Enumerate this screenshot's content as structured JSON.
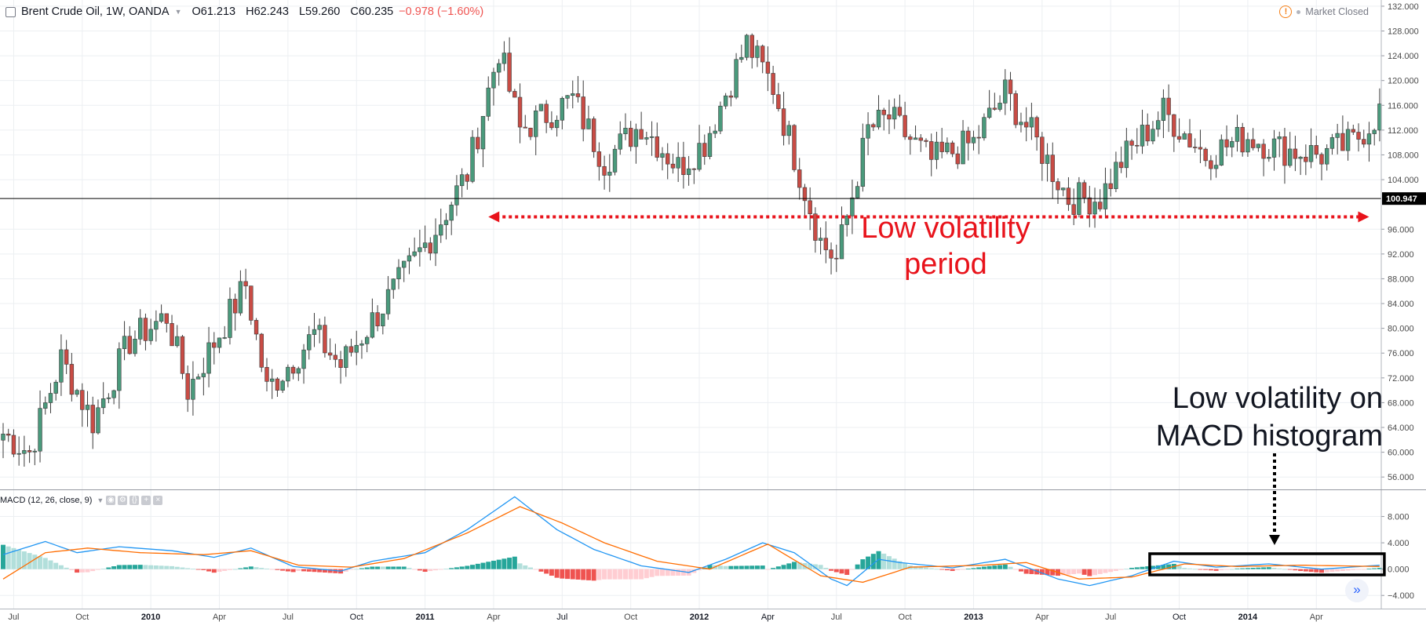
{
  "header": {
    "symbol": "Brent Crude Oil, 1W, OANDA",
    "open": "O61.213",
    "high": "H62.243",
    "low": "L59.260",
    "close": "C60.235",
    "change": "−0.978 (−1.60%)",
    "status": "Market Closed"
  },
  "indicator": {
    "label": "MACD (12, 26, close, 9)"
  },
  "annotations": {
    "low_vol_period_line1": "Low volatility",
    "low_vol_period_line2": "period",
    "macd_note_line1": "Low volatility on",
    "macd_note_line2": "MACD histogram"
  },
  "colors": {
    "up_candle": "#4a9a7c",
    "down_candle": "#c94c45",
    "macd_line": "#2196f3",
    "signal_line": "#ff6d00",
    "hist_pos_strong": "#26a69a",
    "hist_pos_weak": "#b2dfdb",
    "hist_neg_strong": "#ef5350",
    "hist_neg_weak": "#ffcdd2",
    "annotation_red": "#e8131b"
  },
  "chart_data": [
    {
      "type": "candlestick",
      "title": "Brent Crude Oil, 1W, OANDA",
      "interval": "1W",
      "ylim": [
        54,
        133
      ],
      "y_ticks": [
        56,
        60,
        64,
        68,
        72,
        76,
        80,
        84,
        88,
        92,
        96,
        104,
        108,
        112,
        116,
        120,
        124,
        128,
        132
      ],
      "y_tick_labels": [
        "56.000",
        "60.000",
        "64.000",
        "68.000",
        "72.000",
        "76.000",
        "80.000",
        "84.000",
        "88.000",
        "92.000",
        "96.000",
        "104.000",
        "108.000",
        "112.000",
        "116.000",
        "120.000",
        "124.000",
        "128.000",
        "132.000"
      ],
      "price_marker": 100.947,
      "price_marker_label": "100.947",
      "x_axis_labels": [
        "Jul",
        "Oct",
        "2010",
        "Apr",
        "Jul",
        "Oct",
        "2011",
        "Apr",
        "Jul",
        "Oct",
        "2012",
        "Apr",
        "Jul",
        "Oct",
        "2013",
        "Apr",
        "Jul",
        "Oct",
        "2014",
        "Apr"
      ],
      "x_axis_label_weeks": [
        2,
        15,
        28,
        41,
        54,
        67,
        80,
        93,
        106,
        119,
        132,
        145,
        158,
        171,
        184,
        197,
        210,
        223,
        236,
        249
      ],
      "weeks": 262,
      "key_points": [
        {
          "week": 0,
          "price": 63
        },
        {
          "week": 5,
          "price": 60
        },
        {
          "week": 11,
          "price": 75
        },
        {
          "week": 17,
          "price": 65
        },
        {
          "week": 24,
          "price": 78
        },
        {
          "week": 31,
          "price": 82
        },
        {
          "week": 35,
          "price": 70
        },
        {
          "week": 46,
          "price": 87
        },
        {
          "week": 50,
          "price": 70
        },
        {
          "week": 59,
          "price": 79
        },
        {
          "week": 64,
          "price": 74
        },
        {
          "week": 74,
          "price": 86
        },
        {
          "week": 82,
          "price": 96
        },
        {
          "week": 88,
          "price": 105
        },
        {
          "week": 94,
          "price": 125
        },
        {
          "week": 98,
          "price": 112
        },
        {
          "week": 108,
          "price": 117
        },
        {
          "week": 114,
          "price": 107
        },
        {
          "week": 121,
          "price": 113
        },
        {
          "week": 128,
          "price": 106
        },
        {
          "week": 133,
          "price": 110
        },
        {
          "week": 141,
          "price": 126
        },
        {
          "week": 146,
          "price": 119
        },
        {
          "week": 155,
          "price": 94
        },
        {
          "week": 158,
          "price": 91
        },
        {
          "week": 164,
          "price": 112
        },
        {
          "week": 168,
          "price": 114
        },
        {
          "week": 176,
          "price": 107
        },
        {
          "week": 184,
          "price": 110
        },
        {
          "week": 190,
          "price": 118
        },
        {
          "week": 196,
          "price": 110
        },
        {
          "week": 202,
          "price": 101
        },
        {
          "week": 208,
          "price": 101
        },
        {
          "week": 212,
          "price": 107
        },
        {
          "week": 220,
          "price": 115
        },
        {
          "week": 228,
          "price": 108
        },
        {
          "week": 236,
          "price": 111
        },
        {
          "week": 242,
          "price": 109
        },
        {
          "week": 250,
          "price": 108
        },
        {
          "week": 256,
          "price": 110
        },
        {
          "week": 261,
          "price": 115
        }
      ],
      "annotation": {
        "text": "Low volatility period",
        "price_level": 98,
        "from_week": 92,
        "to_week": 259,
        "style": "red dotted double arrow"
      }
    },
    {
      "type": "line",
      "title": "MACD (12, 26, close, 9)",
      "ylim": [
        -6,
        12
      ],
      "y_ticks": [
        -4,
        0,
        4,
        8
      ],
      "y_tick_labels": [
        "−4.000",
        "0.000",
        "4.000",
        "8.000"
      ],
      "series": [
        {
          "name": "MACD",
          "points": [
            [
              0,
              2.2
            ],
            [
              8,
              4.2
            ],
            [
              14,
              2.5
            ],
            [
              22,
              3.4
            ],
            [
              32,
              2.8
            ],
            [
              40,
              1.8
            ],
            [
              47,
              3.2
            ],
            [
              55,
              0.4
            ],
            [
              64,
              -0.3
            ],
            [
              70,
              1.2
            ],
            [
              80,
              2.5
            ],
            [
              88,
              6.0
            ],
            [
              97,
              11.0
            ],
            [
              105,
              6.0
            ],
            [
              112,
              3.0
            ],
            [
              121,
              0.5
            ],
            [
              130,
              -0.5
            ],
            [
              137,
              1.5
            ],
            [
              144,
              4.0
            ],
            [
              150,
              2.5
            ],
            [
              157,
              -1.5
            ],
            [
              160,
              -2.5
            ],
            [
              166,
              1.5
            ],
            [
              170,
              1.0
            ],
            [
              180,
              0.2
            ],
            [
              190,
              1.5
            ],
            [
              200,
              -1.5
            ],
            [
              206,
              -2.5
            ],
            [
              214,
              -1.0
            ],
            [
              222,
              1.2
            ],
            [
              230,
              0.3
            ],
            [
              240,
              0.8
            ],
            [
              250,
              0.0
            ],
            [
              261,
              0.6
            ]
          ]
        },
        {
          "name": "Signal",
          "points": [
            [
              0,
              -1.5
            ],
            [
              8,
              2.5
            ],
            [
              16,
              3.2
            ],
            [
              26,
              2.5
            ],
            [
              38,
              2.2
            ],
            [
              47,
              2.8
            ],
            [
              56,
              0.6
            ],
            [
              66,
              0.3
            ],
            [
              76,
              1.6
            ],
            [
              88,
              5.5
            ],
            [
              98,
              9.5
            ],
            [
              106,
              7.0
            ],
            [
              114,
              4.0
            ],
            [
              124,
              1.2
            ],
            [
              134,
              0.0
            ],
            [
              145,
              3.8
            ],
            [
              155,
              -1.0
            ],
            [
              163,
              -2.0
            ],
            [
              172,
              0.3
            ],
            [
              186,
              0.6
            ],
            [
              194,
              1.0
            ],
            [
              204,
              -1.5
            ],
            [
              214,
              -1.2
            ],
            [
              224,
              0.8
            ],
            [
              234,
              0.4
            ],
            [
              246,
              0.6
            ],
            [
              261,
              0.4
            ]
          ]
        }
      ],
      "histogram_style": "MACD histogram (MACD minus Signal)",
      "annotation": {
        "text": "Low volatility on MACD histogram",
        "from_week": 218,
        "to_week": 261,
        "style": "black rectangle with dotted arrow"
      }
    }
  ]
}
